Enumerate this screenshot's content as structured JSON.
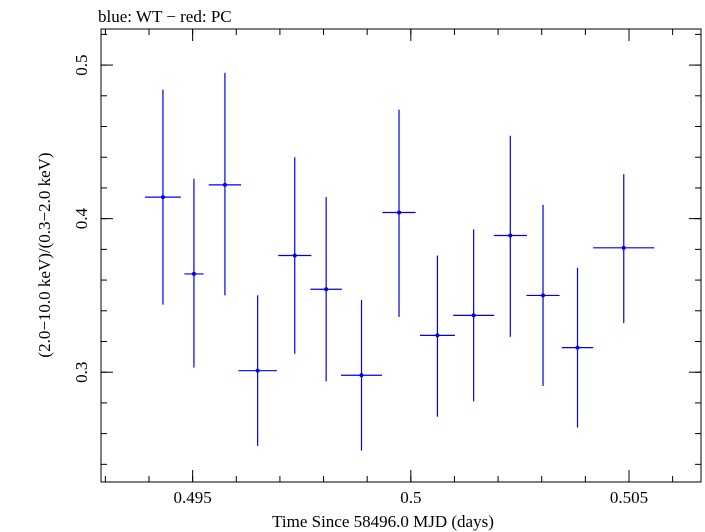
{
  "chart_data": {
    "type": "scatter",
    "title": "blue: WT − red: PC",
    "xlabel": "Time Since 58496.0 MJD (days)",
    "ylabel": "(2.0−10.0 keV)/(0.3−2.0 keV)",
    "xlim": [
      0.4929,
      0.50665
    ],
    "ylim": [
      0.2285,
      0.5235
    ],
    "x_ticks": [
      {
        "value": 0.495,
        "label": "0.495"
      },
      {
        "value": 0.5,
        "label": "0.5"
      },
      {
        "value": 0.505,
        "label": "0.505"
      }
    ],
    "y_ticks": [
      {
        "value": 0.3,
        "label": "0.3"
      },
      {
        "value": 0.4,
        "label": "0.4"
      },
      {
        "value": 0.5,
        "label": "0.5"
      }
    ],
    "x_minor_step": 0.001,
    "y_minor_step": 0.02,
    "grid": false,
    "legend": "none",
    "series": [
      {
        "color": "#0000ee",
        "points": [
          {
            "x": 0.49432,
            "xerr": 0.00041,
            "y": 0.414,
            "y_low": 0.344,
            "y_high": 0.484
          },
          {
            "x": 0.49503,
            "xerr": 0.00022,
            "y": 0.364,
            "y_low": 0.303,
            "y_high": 0.426
          },
          {
            "x": 0.49574,
            "xerr": 0.00037,
            "y": 0.422,
            "y_low": 0.35,
            "y_high": 0.495
          },
          {
            "x": 0.49649,
            "xerr": 0.00044,
            "y": 0.301,
            "y_low": 0.252,
            "y_high": 0.35
          },
          {
            "x": 0.49734,
            "xerr": 0.00038,
            "y": 0.376,
            "y_low": 0.312,
            "y_high": 0.44
          },
          {
            "x": 0.49806,
            "xerr": 0.00036,
            "y": 0.354,
            "y_low": 0.294,
            "y_high": 0.414
          },
          {
            "x": 0.49887,
            "xerr": 0.00047,
            "y": 0.298,
            "y_low": 0.249,
            "y_high": 0.347
          },
          {
            "x": 0.49973,
            "xerr": 0.00038,
            "y": 0.404,
            "y_low": 0.336,
            "y_high": 0.471
          },
          {
            "x": 0.50061,
            "xerr": 0.0004,
            "y": 0.324,
            "y_low": 0.271,
            "y_high": 0.376
          },
          {
            "x": 0.50144,
            "xerr": 0.00047,
            "y": 0.337,
            "y_low": 0.281,
            "y_high": 0.393
          },
          {
            "x": 0.50228,
            "xerr": 0.00038,
            "y": 0.389,
            "y_low": 0.323,
            "y_high": 0.454
          },
          {
            "x": 0.50303,
            "xerr": 0.00038,
            "y": 0.35,
            "y_low": 0.291,
            "y_high": 0.409
          },
          {
            "x": 0.50382,
            "xerr": 0.00036,
            "y": 0.316,
            "y_low": 0.264,
            "y_high": 0.368
          },
          {
            "x": 0.50488,
            "xerr": 0.0007,
            "y": 0.381,
            "y_low": 0.332,
            "y_high": 0.429
          }
        ]
      }
    ]
  }
}
